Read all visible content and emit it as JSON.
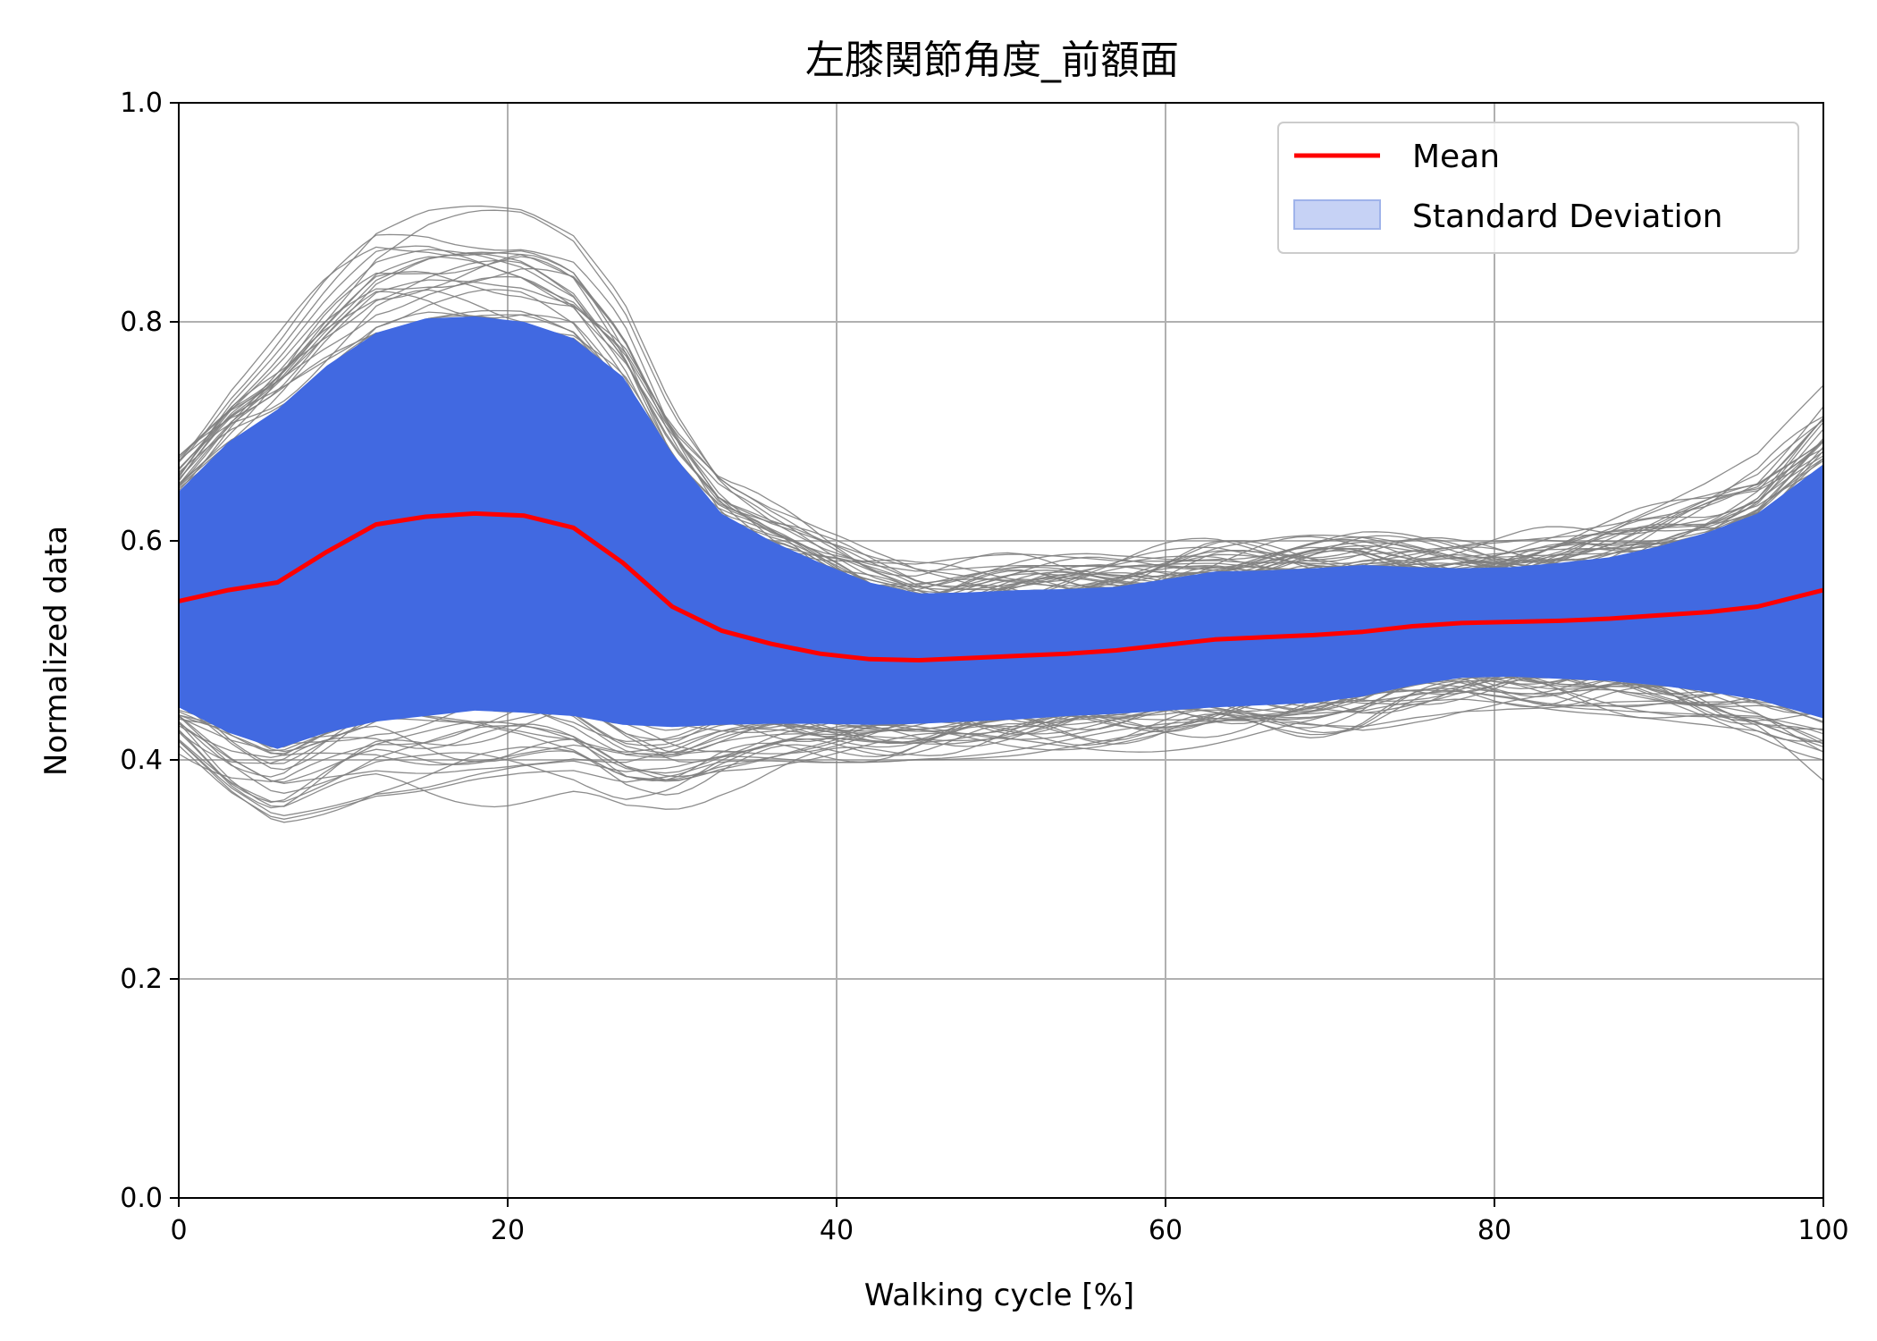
{
  "chart_data": {
    "type": "line",
    "title": "左膝関節角度_前額面",
    "xlabel": "Walking cycle [%]",
    "ylabel": "Normalized data",
    "xlim": [
      0,
      100
    ],
    "ylim": [
      0,
      1
    ],
    "grid": true,
    "legend_position": "top-right",
    "x_ticks": [
      "0",
      "20",
      "40",
      "60",
      "80",
      "100"
    ],
    "y_ticks": [
      "0.0",
      "0.2",
      "0.4",
      "0.6",
      "0.8",
      "1.0"
    ],
    "legend": [
      {
        "label": "Mean",
        "kind": "line",
        "color": "#ff0000"
      },
      {
        "label": "Standard Deviation",
        "kind": "patch",
        "color": "#c6d2f5"
      }
    ],
    "x": [
      0,
      3,
      6,
      9,
      12,
      15,
      18,
      21,
      24,
      27,
      30,
      33,
      36,
      39,
      42,
      45,
      48,
      51,
      54,
      57,
      60,
      63,
      66,
      69,
      72,
      75,
      78,
      81,
      84,
      87,
      90,
      93,
      96,
      100
    ],
    "series": [
      {
        "name": "Mean",
        "color": "#ff0000",
        "values": [
          0.545,
          0.555,
          0.562,
          0.59,
          0.615,
          0.622,
          0.625,
          0.623,
          0.612,
          0.58,
          0.54,
          0.518,
          0.506,
          0.497,
          0.492,
          0.491,
          0.493,
          0.495,
          0.497,
          0.5,
          0.505,
          0.51,
          0.512,
          0.514,
          0.517,
          0.522,
          0.525,
          0.526,
          0.527,
          0.529,
          0.532,
          0.535,
          0.54,
          0.555
        ]
      },
      {
        "name": "Standard Deviation",
        "color": "#4169e1",
        "upper": [
          0.645,
          0.69,
          0.72,
          0.76,
          0.79,
          0.803,
          0.805,
          0.8,
          0.785,
          0.75,
          0.68,
          0.625,
          0.6,
          0.58,
          0.562,
          0.552,
          0.553,
          0.555,
          0.556,
          0.558,
          0.565,
          0.572,
          0.573,
          0.575,
          0.578,
          0.576,
          0.575,
          0.576,
          0.58,
          0.585,
          0.595,
          0.608,
          0.625,
          0.67
        ],
        "lower": [
          0.448,
          0.425,
          0.41,
          0.425,
          0.435,
          0.44,
          0.445,
          0.443,
          0.44,
          0.432,
          0.43,
          0.432,
          0.433,
          0.433,
          0.432,
          0.433,
          0.435,
          0.437,
          0.44,
          0.442,
          0.445,
          0.448,
          0.45,
          0.452,
          0.458,
          0.468,
          0.475,
          0.476,
          0.474,
          0.472,
          0.468,
          0.462,
          0.455,
          0.438
        ]
      }
    ],
    "trial_line_color": "#808080"
  }
}
